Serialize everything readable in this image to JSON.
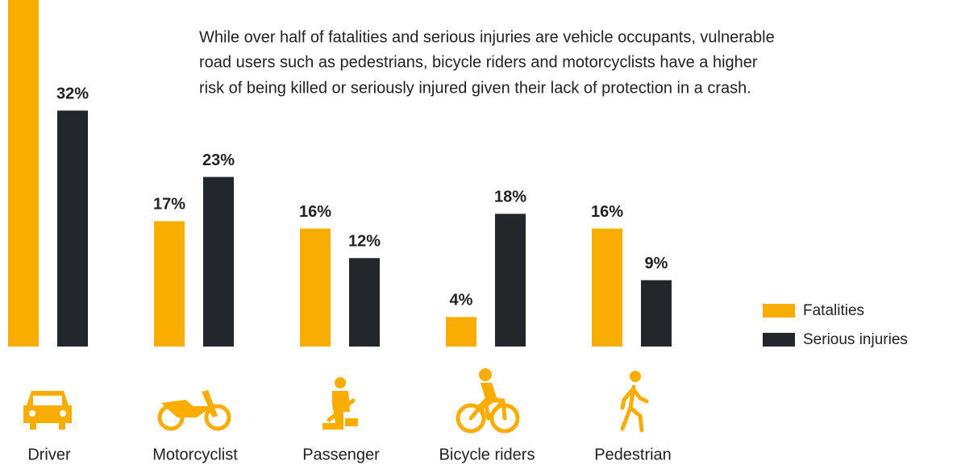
{
  "chart_data": {
    "type": "bar",
    "subtitle": [
      "While over half of fatalities and serious injuries are vehicle occupants, vulnerable",
      "road users such as pedestrians, bicycle riders and motorcyclists have a higher",
      "risk of being killed or seriously injured given their lack of protection in a crash."
    ],
    "categories": [
      "Driver",
      "Motorcyclist",
      "Passenger",
      "Bicycle riders",
      "Pedestrian"
    ],
    "series": [
      {
        "name": "Fatalities",
        "color": "#f9ad00",
        "values": [
          48,
          17,
          16,
          4,
          16
        ],
        "value_labels": [
          null,
          "17%",
          "16%",
          "4%",
          "16%"
        ]
      },
      {
        "name": "Serious injuries",
        "color": "#23272b",
        "values": [
          32,
          23,
          12,
          18,
          9
        ],
        "value_labels": [
          "32%",
          "23%",
          "12%",
          "18%",
          "9%"
        ]
      }
    ],
    "ylim": [
      0,
      47
    ]
  }
}
